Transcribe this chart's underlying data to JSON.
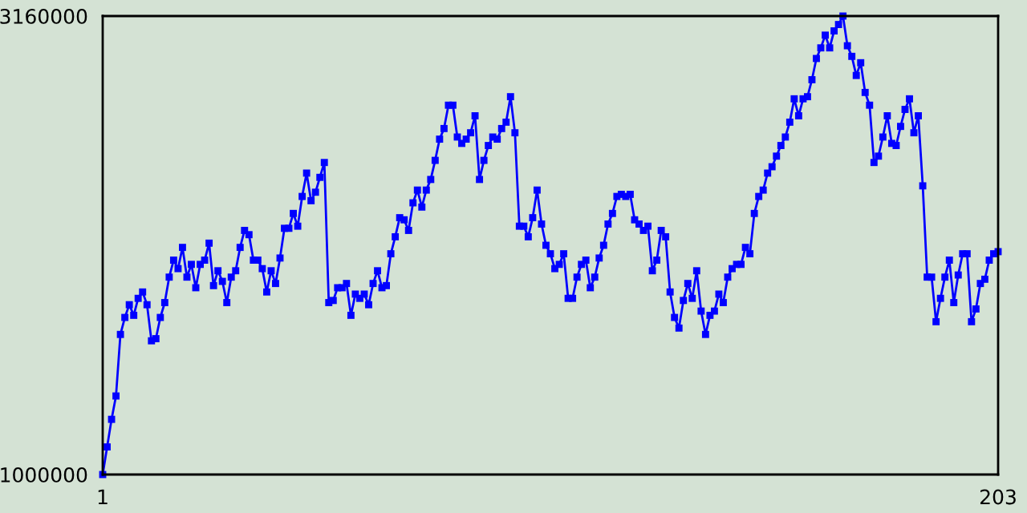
{
  "chart_data": {
    "type": "line",
    "marker": "square",
    "line_style": "solid",
    "legend": false,
    "xlim": [
      1,
      203
    ],
    "xticks": [
      1,
      203
    ],
    "ylim": [
      1000000,
      3160000
    ],
    "yticks": [
      1000000,
      3160000
    ],
    "x": [
      1,
      2,
      3,
      4,
      5,
      6,
      7,
      8,
      9,
      10,
      11,
      12,
      13,
      14,
      15,
      16,
      17,
      18,
      19,
      20,
      21,
      22,
      23,
      24,
      25,
      26,
      27,
      28,
      29,
      30,
      31,
      32,
      33,
      34,
      35,
      36,
      37,
      38,
      39,
      40,
      41,
      42,
      43,
      44,
      45,
      46,
      47,
      48,
      49,
      50,
      51,
      52,
      53,
      54,
      55,
      56,
      57,
      58,
      59,
      60,
      61,
      62,
      63,
      64,
      65,
      66,
      67,
      68,
      69,
      70,
      71,
      72,
      73,
      74,
      75,
      76,
      77,
      78,
      79,
      80,
      81,
      82,
      83,
      84,
      85,
      86,
      87,
      88,
      89,
      90,
      91,
      92,
      93,
      94,
      95,
      96,
      97,
      98,
      99,
      100,
      101,
      102,
      103,
      104,
      105,
      106,
      107,
      108,
      109,
      110,
      111,
      112,
      113,
      114,
      115,
      116,
      117,
      118,
      119,
      120,
      121,
      122,
      123,
      124,
      125,
      126,
      127,
      128,
      129,
      130,
      131,
      132,
      133,
      134,
      135,
      136,
      137,
      138,
      139,
      140,
      141,
      142,
      143,
      144,
      145,
      146,
      147,
      148,
      149,
      150,
      151,
      152,
      153,
      154,
      155,
      156,
      157,
      158,
      159,
      160,
      161,
      162,
      163,
      164,
      165,
      166,
      167,
      168,
      169,
      170,
      171,
      172,
      173,
      174,
      175,
      176,
      177,
      178,
      179,
      180,
      181,
      182,
      183,
      184,
      185,
      186,
      187,
      188,
      189,
      190,
      191,
      192,
      193,
      194,
      195,
      196,
      197,
      198,
      199,
      200,
      201,
      202,
      203
    ],
    "series": [
      {
        "color": "#0000ff",
        "values": [
          1000000,
          1130000,
          1260000,
          1370000,
          1660000,
          1740000,
          1800000,
          1750000,
          1830000,
          1860000,
          1800000,
          1630000,
          1640000,
          1740000,
          1810000,
          1930000,
          2010000,
          1970000,
          2070000,
          1930000,
          1990000,
          1880000,
          1990000,
          2010000,
          2090000,
          1890000,
          1960000,
          1910000,
          1810000,
          1930000,
          1960000,
          2070000,
          2150000,
          2130000,
          2010000,
          2010000,
          1970000,
          1860000,
          1960000,
          1900000,
          2020000,
          2160000,
          2160000,
          2230000,
          2170000,
          2310000,
          2420000,
          2290000,
          2330000,
          2400000,
          2470000,
          1810000,
          1820000,
          1880000,
          1880000,
          1900000,
          1750000,
          1850000,
          1830000,
          1850000,
          1800000,
          1900000,
          1960000,
          1880000,
          1890000,
          2040000,
          2120000,
          2210000,
          2200000,
          2150000,
          2280000,
          2340000,
          2260000,
          2340000,
          2390000,
          2480000,
          2580000,
          2630000,
          2740000,
          2740000,
          2590000,
          2560000,
          2580000,
          2610000,
          2690000,
          2390000,
          2480000,
          2550000,
          2590000,
          2580000,
          2630000,
          2660000,
          2780000,
          2610000,
          2170000,
          2170000,
          2120000,
          2210000,
          2340000,
          2180000,
          2080000,
          2040000,
          1970000,
          1990000,
          2040000,
          1830000,
          1830000,
          1930000,
          1990000,
          2010000,
          1880000,
          1930000,
          2020000,
          2080000,
          2180000,
          2230000,
          2310000,
          2320000,
          2310000,
          2320000,
          2200000,
          2180000,
          2150000,
          2170000,
          1960000,
          2010000,
          2150000,
          2120000,
          1860000,
          1740000,
          1690000,
          1820000,
          1900000,
          1830000,
          1960000,
          1770000,
          1660000,
          1750000,
          1770000,
          1850000,
          1810000,
          1930000,
          1970000,
          1990000,
          1990000,
          2070000,
          2040000,
          2230000,
          2310000,
          2340000,
          2420000,
          2450000,
          2500000,
          2550000,
          2590000,
          2660000,
          2770000,
          2690000,
          2770000,
          2780000,
          2860000,
          2960000,
          3010000,
          3070000,
          3010000,
          3090000,
          3120000,
          3160000,
          3020000,
          2970000,
          2880000,
          2940000,
          2800000,
          2740000,
          2470000,
          2500000,
          2590000,
          2690000,
          2560000,
          2550000,
          2640000,
          2720000,
          2770000,
          2610000,
          2690000,
          2360000,
          1930000,
          1930000,
          1720000,
          1830000,
          1930000,
          2010000,
          1810000,
          1940000,
          2040000,
          2040000,
          1720000,
          1780000,
          1900000,
          1920000,
          2010000,
          2040000,
          2050000
        ]
      }
    ]
  }
}
